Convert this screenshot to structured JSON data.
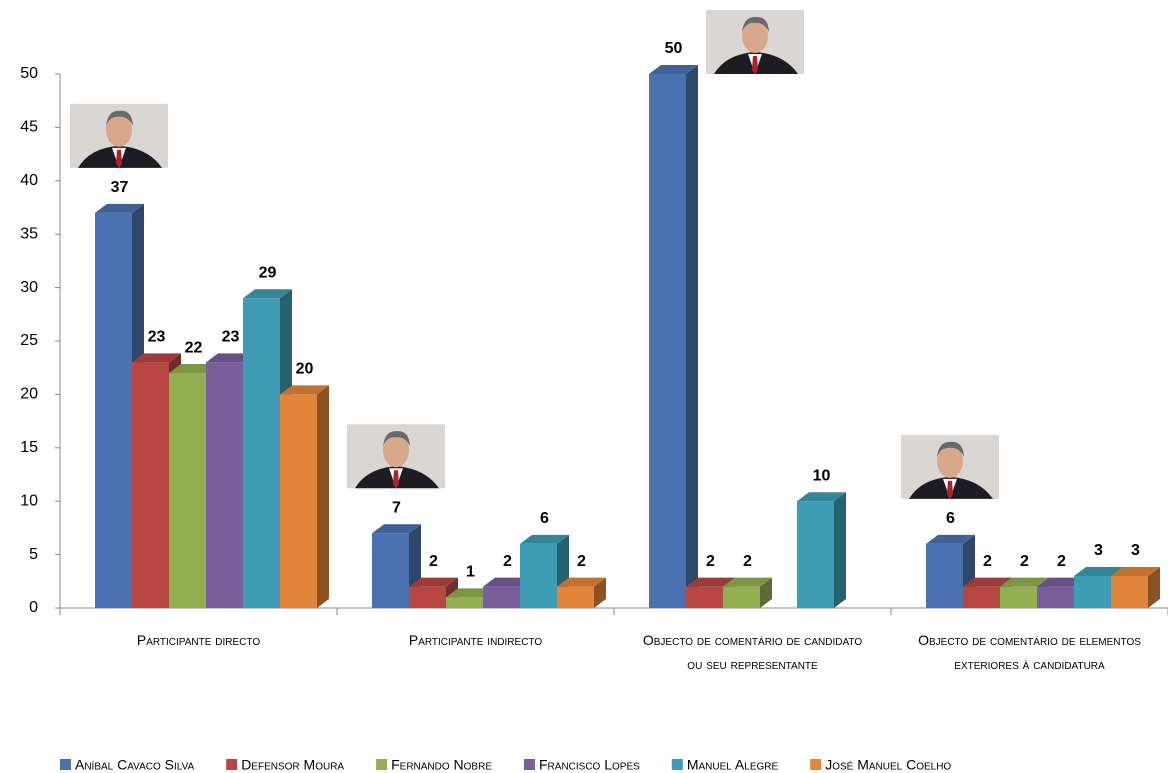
{
  "chart_data": {
    "type": "bar3d",
    "categories": [
      "Participante directo",
      "Participante indirecto",
      "Objecto de comentário de candidato ou seu representante",
      "Objecto de comentário de elementos exteriores à candidatura"
    ],
    "series": [
      {
        "name": "Aníbal Cavaco Silva",
        "color": "#4a72b0",
        "values": [
          37,
          7,
          50,
          6
        ]
      },
      {
        "name": "Defensor Moura",
        "color": "#b84744",
        "values": [
          23,
          2,
          2,
          2
        ]
      },
      {
        "name": "Fernando Nobre",
        "color": "#92b052",
        "values": [
          22,
          1,
          2,
          2
        ]
      },
      {
        "name": "Francisco Lopes",
        "color": "#7a5d9c",
        "values": [
          23,
          2,
          null,
          2
        ]
      },
      {
        "name": "Manuel Alegre",
        "color": "#3e9cb4",
        "values": [
          29,
          6,
          10,
          3
        ]
      },
      {
        "name": "José Manuel Coelho",
        "color": "#e3853a",
        "values": [
          20,
          2,
          null,
          3
        ]
      }
    ],
    "ylim": [
      0,
      50
    ],
    "yticks": [
      0,
      5,
      10,
      15,
      20,
      25,
      30,
      35,
      40,
      45,
      50
    ],
    "grid": false,
    "legend": "bottom"
  }
}
